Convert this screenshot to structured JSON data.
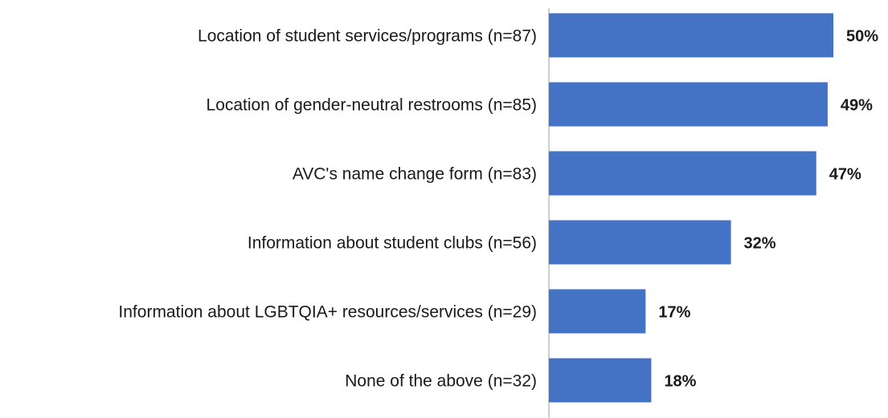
{
  "chart_data": {
    "type": "bar",
    "orientation": "horizontal",
    "categories": [
      "Location of student services/programs (n=87)",
      "Location of gender-neutral restrooms (n=85)",
      "AVC's name change form (n=83)",
      "Information about student clubs (n=56)",
      "Information about LGBTQIA+ resources/services (n=29)",
      "None of the above (n=32)"
    ],
    "values": [
      50,
      49,
      47,
      32,
      17,
      18
    ],
    "value_labels": [
      "50%",
      "49%",
      "47%",
      "32%",
      "17%",
      "18%"
    ],
    "color": "#4472c4",
    "xlim": [
      0,
      50
    ]
  }
}
